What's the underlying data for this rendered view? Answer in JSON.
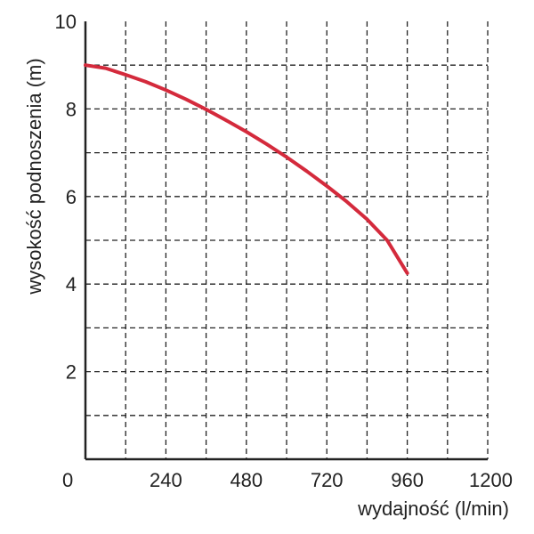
{
  "chart_data": {
    "type": "line",
    "title": "",
    "xlabel": "wydajność (l/min)",
    "ylabel": "wysokość podnoszenia (m)",
    "xlim": [
      0,
      1200
    ],
    "ylim": [
      0,
      10
    ],
    "x_ticks": [
      0,
      240,
      480,
      720,
      960,
      1200
    ],
    "x_tick_labels": [
      "0",
      "240",
      "480",
      "720",
      "960",
      "1200"
    ],
    "x_grid": [
      120,
      240,
      360,
      480,
      600,
      720,
      840,
      960,
      1080,
      1200
    ],
    "y_ticks": [
      2,
      4,
      6,
      8,
      10
    ],
    "y_tick_labels": [
      "2",
      "4",
      "6",
      "8",
      "10"
    ],
    "y_grid": [
      1,
      2,
      3,
      4,
      5,
      6,
      7,
      8,
      9
    ],
    "grid": true,
    "series": [
      {
        "color": "#d42a3c",
        "x": [
          0,
          60,
          120,
          180,
          240,
          300,
          360,
          420,
          480,
          540,
          600,
          660,
          720,
          780,
          840,
          900,
          960
        ],
        "y": [
          9.0,
          8.93,
          8.78,
          8.62,
          8.43,
          8.22,
          7.99,
          7.74,
          7.48,
          7.2,
          6.9,
          6.58,
          6.24,
          5.88,
          5.48,
          5.0,
          4.25
        ]
      }
    ]
  }
}
